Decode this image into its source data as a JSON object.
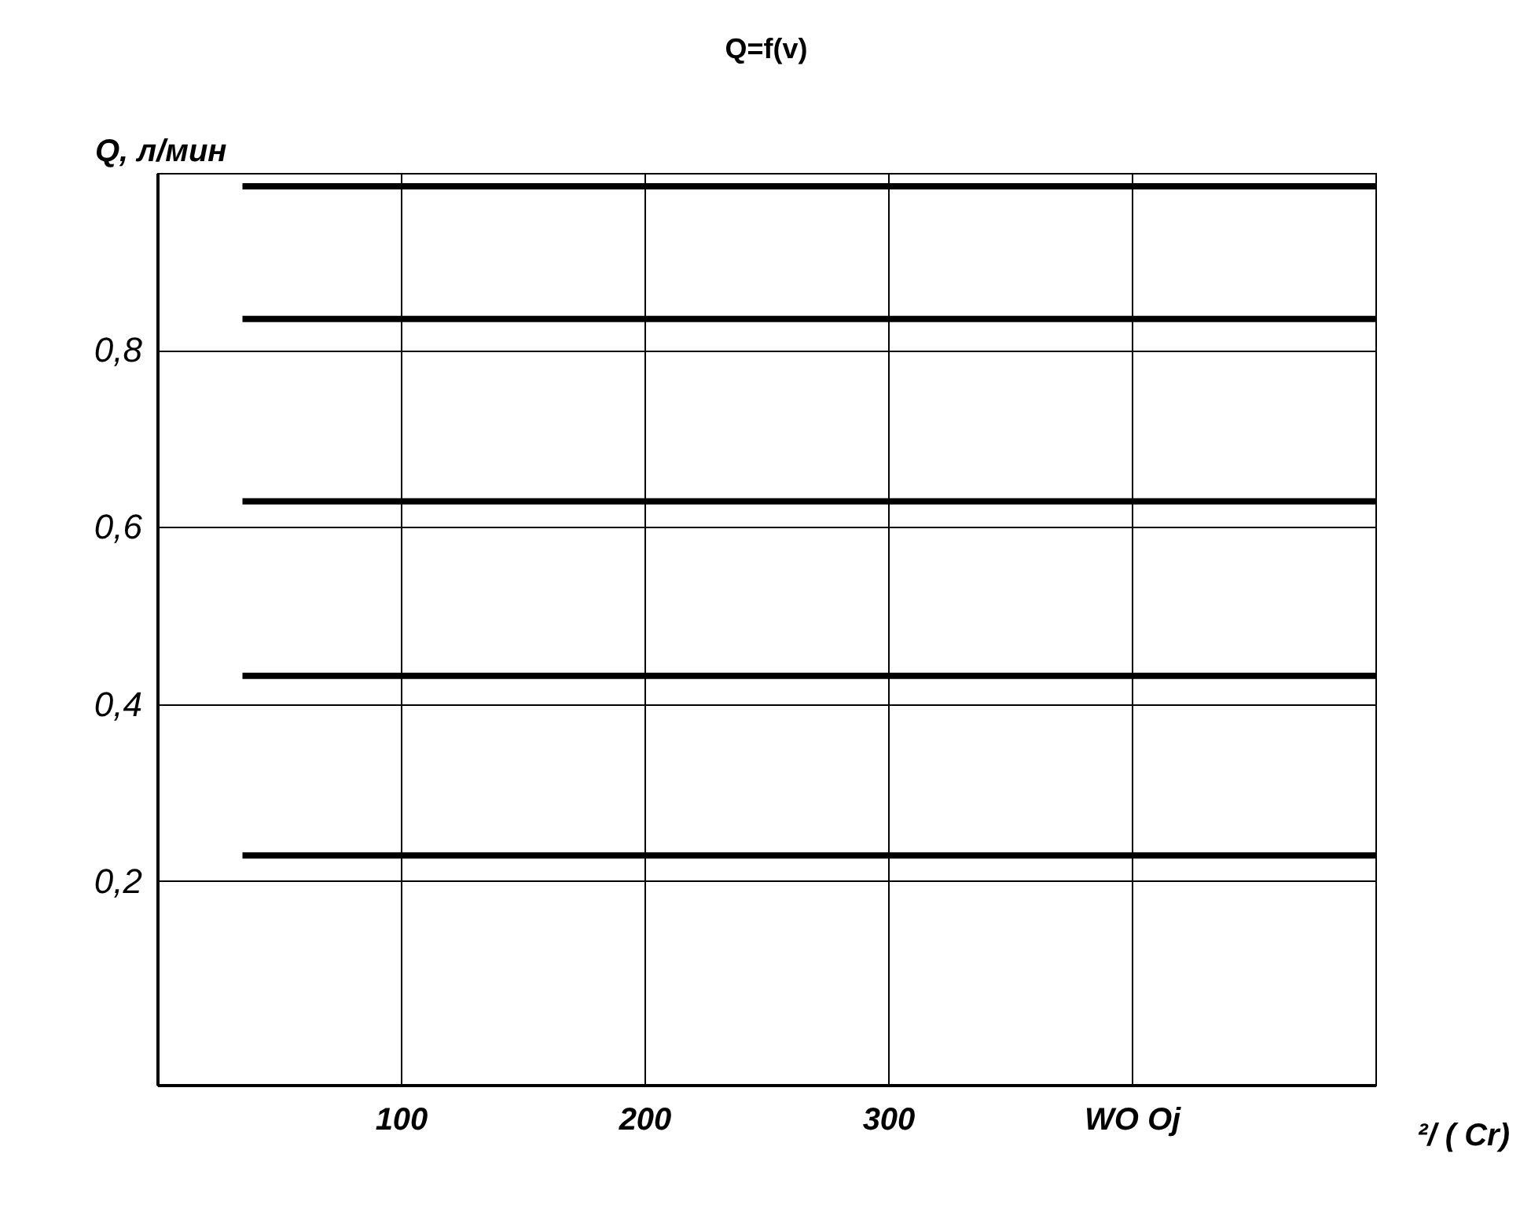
{
  "chart_data": {
    "type": "line",
    "title": "Q=f(v)",
    "xlabel": "²/ ( Cr)",
    "ylabel": "Q, л/мин",
    "x": [
      35,
      500
    ],
    "series": [
      {
        "color": "#000000",
        "values": [
          0.229,
          0.229
        ]
      },
      {
        "color": "#000000",
        "values": [
          0.432,
          0.432
        ]
      },
      {
        "color": "#000000",
        "values": [
          0.629,
          0.629
        ]
      },
      {
        "color": "#000000",
        "values": [
          0.835,
          0.835
        ]
      },
      {
        "color": "#000000",
        "values": [
          0.985,
          0.985
        ]
      }
    ],
    "xlim": [
      0,
      500
    ],
    "xticks": [
      100,
      200,
      300,
      {
        "value": 400,
        "label": "WO Oj"
      },
      {
        "value": 500,
        "label": null
      }
    ],
    "ylim": [
      -0.03,
      1.0
    ],
    "yticks": [
      {
        "value": 0.2,
        "label": "0,2"
      },
      {
        "value": 0.4,
        "label": "0,4"
      },
      {
        "value": 0.6,
        "label": "0,6"
      },
      {
        "value": 0.8,
        "label": "0,8"
      }
    ],
    "grid": true,
    "marker": "none",
    "line_style": "solid"
  }
}
